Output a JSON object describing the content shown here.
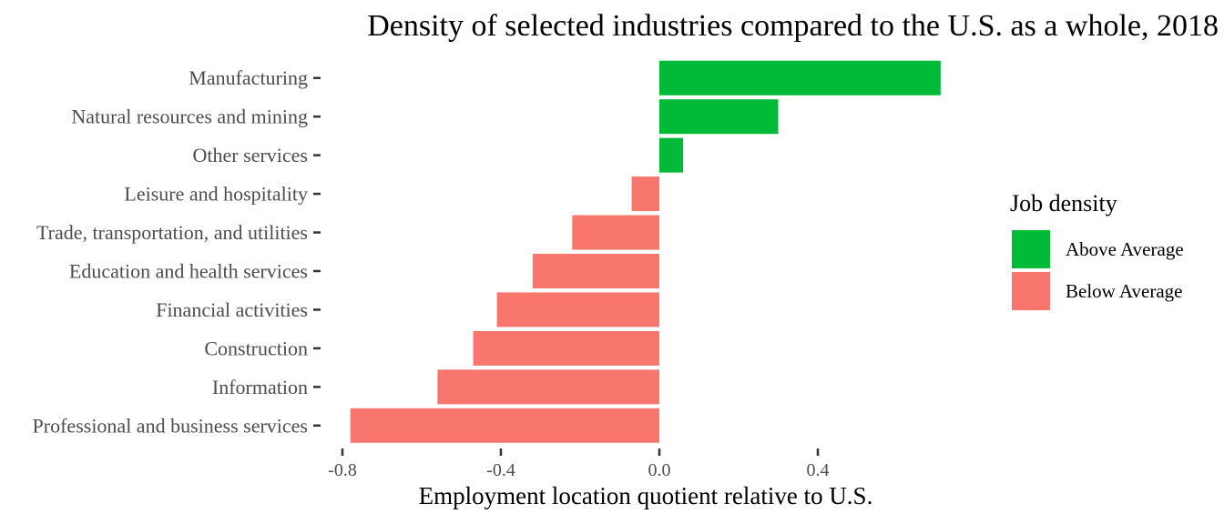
{
  "chart_data": {
    "type": "bar",
    "orientation": "horizontal",
    "title": "Density of selected industries compared to the U.S. as a whole, 2018",
    "xlabel": "Employment location quotient relative to U.S.",
    "ylabel": "",
    "xlim": [
      -0.8,
      0.72
    ],
    "xticks": [
      -0.8,
      -0.4,
      0.0,
      0.4
    ],
    "xtick_labels": [
      "-0.8",
      "-0.4",
      "0.0",
      "0.4"
    ],
    "grid": false,
    "categories": [
      "Manufacturing",
      "Natural resources and mining",
      "Other services",
      "Leisure and hospitality",
      "Trade, transportation, and utilities",
      "Education and health services",
      "Financial activities",
      "Construction",
      "Information",
      "Professional and business services"
    ],
    "values": [
      0.71,
      0.3,
      0.06,
      -0.07,
      -0.22,
      -0.32,
      -0.41,
      -0.47,
      -0.56,
      -0.78
    ],
    "groups": [
      "Above Average",
      "Above Average",
      "Above Average",
      "Below Average",
      "Below Average",
      "Below Average",
      "Below Average",
      "Below Average",
      "Below Average",
      "Below Average"
    ],
    "legend": {
      "title": "Job density",
      "position": "right",
      "entries": [
        {
          "label": "Above Average",
          "color": "#00ba38"
        },
        {
          "label": "Below Average",
          "color": "#f8766d"
        }
      ]
    }
  }
}
